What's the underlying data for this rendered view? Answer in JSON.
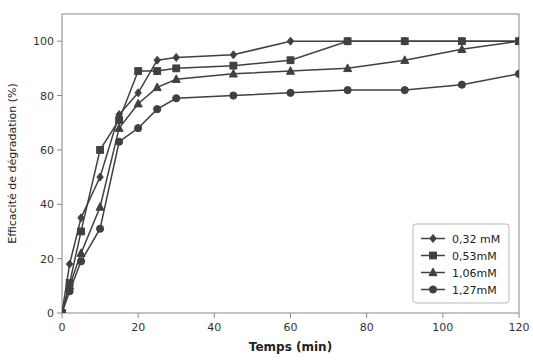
{
  "chart_data": {
    "type": "line",
    "x_label": "Temps (min)",
    "y_label": "Efficacité de dégradation (%)",
    "x": [
      0,
      2,
      5,
      10,
      15,
      20,
      25,
      30,
      45,
      60,
      75,
      90,
      105,
      120
    ],
    "series": [
      {
        "name": "0,32 mM",
        "marker": "diamond",
        "color": "#404040",
        "values": [
          0,
          18,
          35,
          50,
          73,
          81,
          93,
          94,
          95,
          100,
          100,
          100,
          100,
          100
        ]
      },
      {
        "name": "0,53mM",
        "marker": "square",
        "color": "#404040",
        "values": [
          0,
          11,
          30,
          60,
          71,
          89,
          89,
          90,
          91,
          93,
          100,
          100,
          100,
          100
        ]
      },
      {
        "name": "1,06mM",
        "marker": "triangle",
        "color": "#404040",
        "values": [
          0,
          10,
          22,
          39,
          68,
          77,
          83,
          86,
          88,
          89,
          90,
          93,
          97,
          100
        ]
      },
      {
        "name": "1,27mM",
        "marker": "circle",
        "color": "#404040",
        "values": [
          0,
          8,
          19,
          31,
          63,
          68,
          75,
          79,
          80,
          81,
          82,
          82,
          84,
          88
        ]
      }
    ],
    "xlim": [
      0,
      120
    ],
    "ylim": [
      0,
      110
    ],
    "xticks": [
      0,
      20,
      40,
      60,
      80,
      100,
      120
    ],
    "yticks": [
      0,
      20,
      40,
      60,
      80,
      100
    ],
    "grid": false,
    "legend": "lower right"
  }
}
